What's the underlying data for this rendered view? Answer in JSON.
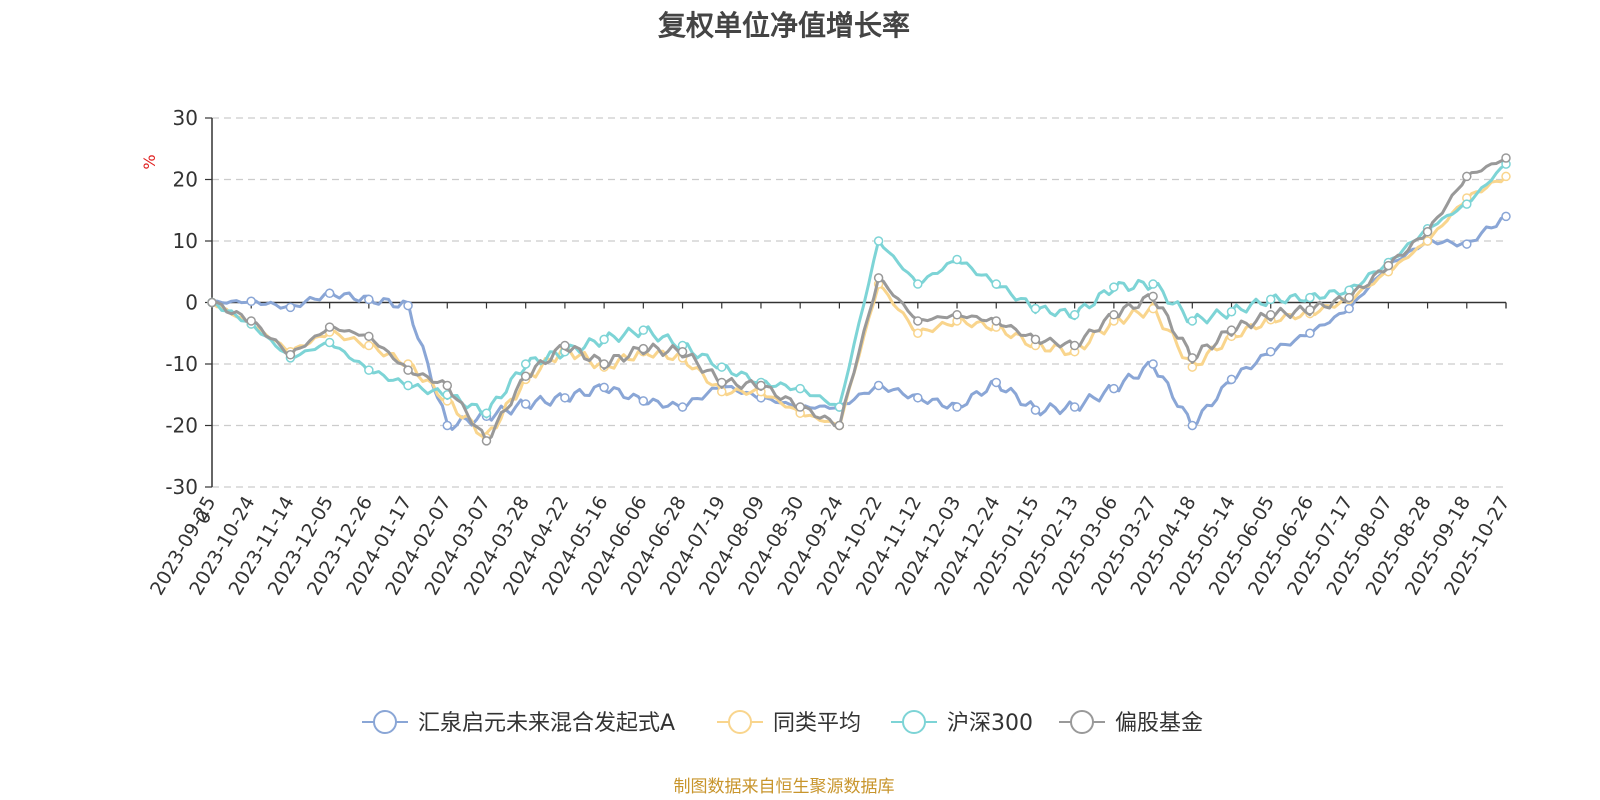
{
  "source_note": "制图数据来自恒生聚源数据库",
  "chart_data": {
    "type": "line",
    "title": "复权单位净值增长率",
    "y_unit": "%",
    "ylim": [
      -30,
      30
    ],
    "y_ticks": [
      -30,
      -20,
      -10,
      0,
      10,
      20,
      30
    ],
    "grid": "horizontal-dashed",
    "legend_position": "bottom",
    "x_ticks": [
      "2023-09-25",
      "2023-10-24",
      "2023-11-14",
      "2023-12-05",
      "2023-12-26",
      "2024-01-17",
      "2024-02-07",
      "2024-03-07",
      "2024-03-28",
      "2024-04-22",
      "2024-05-16",
      "2024-06-06",
      "2024-06-28",
      "2024-07-19",
      "2024-08-09",
      "2024-08-30",
      "2024-09-24",
      "2024-10-22",
      "2024-11-12",
      "2024-12-03",
      "2024-12-24",
      "2025-01-15",
      "2025-02-13",
      "2025-03-06",
      "2025-03-27",
      "2025-04-18",
      "2025-05-14",
      "2025-06-05",
      "2025-06-26",
      "2025-07-17",
      "2025-08-07",
      "2025-08-28",
      "2025-09-18",
      "2025-10-27"
    ],
    "start_label": "0",
    "series": [
      {
        "name": "汇泉启元未来混合发起式A",
        "color": "#8aa6d6",
        "values": [
          0,
          0.2,
          -0.8,
          1.5,
          0.5,
          -0.5,
          -20,
          -18.5,
          -16.5,
          -15.5,
          -13.8,
          -16,
          -17,
          -13.5,
          -15.5,
          -17,
          -17,
          -13.5,
          -15.5,
          -17,
          -13,
          -17.5,
          -17,
          -14,
          -10,
          -20,
          -12.5,
          -8,
          -5,
          -1,
          6,
          10,
          9.5,
          14
        ]
      },
      {
        "name": "同类平均",
        "color": "#f9d58d",
        "values": [
          0,
          -3.5,
          -8,
          -4.8,
          -7,
          -10,
          -16,
          -22,
          -12.5,
          -7.5,
          -10.5,
          -8,
          -9,
          -14.5,
          -14.5,
          -18,
          -20,
          3,
          -5,
          -3,
          -4,
          -7,
          -8,
          -3,
          -1,
          -10.5,
          -5.5,
          -2.8,
          -1.8,
          0.5,
          5,
          10,
          17,
          20.5
        ]
      },
      {
        "name": "沪深300",
        "color": "#7dd4d6",
        "values": [
          0,
          -3.5,
          -9,
          -6.5,
          -11,
          -13.5,
          -15,
          -18,
          -10,
          -8,
          -6,
          -4.5,
          -7,
          -10.5,
          -13,
          -14,
          -17,
          10,
          3,
          7,
          3,
          -1,
          -2,
          2.5,
          3,
          -3,
          -1.5,
          0.5,
          0.8,
          2,
          6.5,
          12,
          16,
          22.5
        ]
      },
      {
        "name": "偏股基金",
        "color": "#999999",
        "values": [
          0,
          -3,
          -8.5,
          -4,
          -5.5,
          -11,
          -13.5,
          -22.5,
          -12,
          -7,
          -10,
          -7.5,
          -8,
          -13,
          -13.5,
          -17,
          -20,
          4,
          -3,
          -2,
          -3,
          -6,
          -7,
          -2,
          1,
          -9,
          -4.5,
          -2,
          -1.2,
          0.8,
          6,
          11.5,
          20.5,
          23.5
        ]
      }
    ]
  }
}
